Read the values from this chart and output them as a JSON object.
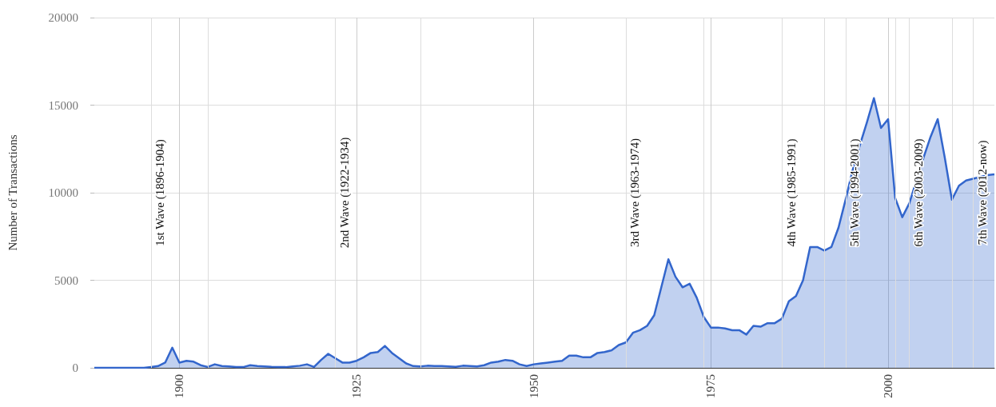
{
  "chart_data": {
    "type": "area",
    "ylabel": "Number of Transactions",
    "x": [
      1888,
      1889,
      1890,
      1891,
      1892,
      1893,
      1894,
      1895,
      1896,
      1897,
      1898,
      1899,
      1900,
      1901,
      1902,
      1903,
      1904,
      1905,
      1906,
      1907,
      1908,
      1909,
      1910,
      1911,
      1912,
      1913,
      1914,
      1915,
      1916,
      1917,
      1918,
      1919,
      1920,
      1921,
      1922,
      1923,
      1924,
      1925,
      1926,
      1927,
      1928,
      1929,
      1930,
      1931,
      1932,
      1933,
      1934,
      1935,
      1936,
      1937,
      1938,
      1939,
      1940,
      1941,
      1942,
      1943,
      1944,
      1945,
      1946,
      1947,
      1948,
      1949,
      1950,
      1951,
      1952,
      1953,
      1954,
      1955,
      1956,
      1957,
      1958,
      1959,
      1960,
      1961,
      1962,
      1963,
      1964,
      1965,
      1966,
      1967,
      1968,
      1969,
      1970,
      1971,
      1972,
      1973,
      1974,
      1975,
      1976,
      1977,
      1978,
      1979,
      1980,
      1981,
      1982,
      1983,
      1984,
      1985,
      1986,
      1987,
      1988,
      1989,
      1990,
      1991,
      1992,
      1993,
      1994,
      1995,
      1996,
      1997,
      1998,
      1999,
      2000,
      2001,
      2002,
      2003,
      2004,
      2005,
      2006,
      2007,
      2008,
      2009,
      2010,
      2011,
      2012,
      2013,
      2014,
      2015
    ],
    "series": [
      {
        "color": "#3366cc",
        "values": [
          0,
          0,
          0,
          0,
          0,
          0,
          0,
          0,
          50,
          100,
          300,
          1150,
          300,
          400,
          350,
          150,
          50,
          200,
          100,
          80,
          50,
          40,
          150,
          100,
          80,
          60,
          50,
          40,
          80,
          120,
          200,
          50,
          450,
          800,
          550,
          300,
          300,
          400,
          600,
          850,
          900,
          1250,
          850,
          550,
          250,
          100,
          80,
          120,
          100,
          100,
          80,
          60,
          120,
          100,
          80,
          150,
          300,
          350,
          450,
          400,
          200,
          100,
          200,
          250,
          300,
          350,
          400,
          700,
          700,
          600,
          600,
          850,
          900,
          1000,
          1300,
          1450,
          2000,
          2150,
          2400,
          3000,
          4600,
          6200,
          5200,
          4600,
          4800,
          4000,
          2900,
          2300,
          2300,
          2250,
          2150,
          2150,
          1900,
          2400,
          2350,
          2550,
          2550,
          2800,
          3800,
          4100,
          5000,
          6900,
          6900,
          6700,
          6900,
          8000,
          9600,
          11300,
          12700,
          14000,
          15400,
          13700,
          14200,
          9700,
          8600,
          9400,
          10700,
          12000,
          13200,
          14200,
          12000,
          9600,
          10400,
          10700,
          10800,
          10900,
          11000,
          11050
        ]
      }
    ],
    "xlim": [
      1888,
      2015
    ],
    "xticks": [
      1900,
      1925,
      1950,
      1975,
      2000
    ],
    "ylim": [
      0,
      20000
    ],
    "yticks": [
      0,
      5000,
      10000,
      15000,
      20000
    ],
    "grid": true,
    "marker": "none",
    "ref_lines": [
      {
        "axis": "x",
        "value": 1896,
        "label": "1st Wave (1896-1904)"
      },
      {
        "axis": "x",
        "value": 1904,
        "label": null
      },
      {
        "axis": "x",
        "value": 1922,
        "label": "2nd Wave (1922-1934)"
      },
      {
        "axis": "x",
        "value": 1934,
        "label": null
      },
      {
        "axis": "x",
        "value": 1963,
        "label": "3rd Wave (1963-1974)"
      },
      {
        "axis": "x",
        "value": 1974,
        "label": null
      },
      {
        "axis": "x",
        "value": 1985,
        "label": "4th Wave (1985-1991)"
      },
      {
        "axis": "x",
        "value": 1991,
        "label": null
      },
      {
        "axis": "x",
        "value": 1994,
        "label": "5th Wave (1994-2001)"
      },
      {
        "axis": "x",
        "value": 2001,
        "label": null
      },
      {
        "axis": "x",
        "value": 2003,
        "label": "6th Wave (2003-2009)"
      },
      {
        "axis": "x",
        "value": 2009,
        "label": null
      },
      {
        "axis": "x",
        "value": 2012,
        "label": "7th Wave (2012-now)"
      }
    ]
  }
}
